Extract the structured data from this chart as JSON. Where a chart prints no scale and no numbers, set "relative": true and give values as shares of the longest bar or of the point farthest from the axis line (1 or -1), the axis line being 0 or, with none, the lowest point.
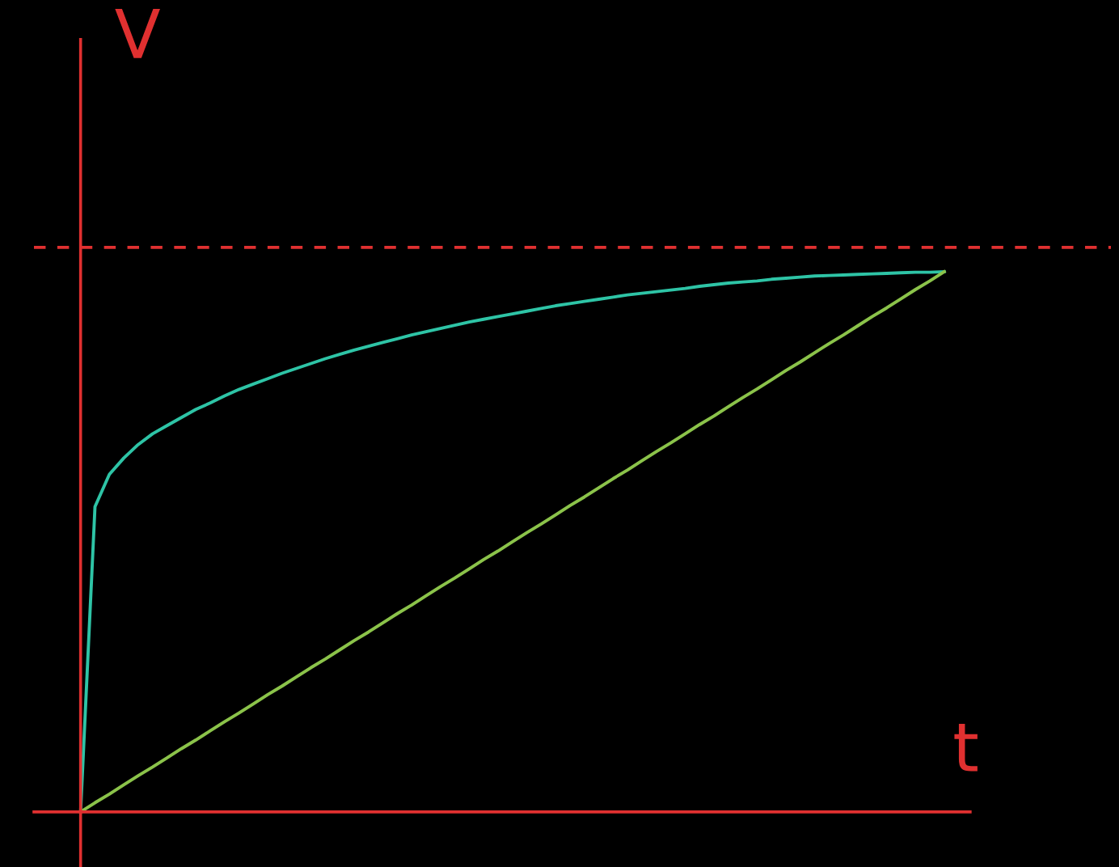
{
  "chart_data": {
    "type": "line",
    "relative": true,
    "xlabel": "t",
    "ylabel": "V",
    "categories": [
      null,
      null,
      null,
      null,
      null,
      null,
      null,
      null,
      null,
      null,
      null,
      null,
      null,
      null,
      null,
      null,
      null,
      null,
      null,
      null,
      null,
      null,
      null,
      null,
      null,
      null,
      null,
      null,
      null,
      null,
      null,
      null,
      null,
      null,
      null,
      null,
      null,
      null,
      null,
      null,
      null,
      null,
      null,
      null,
      null,
      null,
      null,
      null,
      null,
      null,
      null,
      null,
      null,
      null,
      null,
      null,
      null,
      null,
      null,
      null,
      null
    ],
    "series": [
      {
        "color": "#2ec4a6",
        "values": [
          0,
          0.565,
          0.625,
          0.655,
          0.68,
          0.7,
          0.715,
          0.73,
          0.745,
          0.757,
          0.77,
          0.782,
          0.792,
          0.802,
          0.812,
          0.821,
          0.83,
          0.839,
          0.847,
          0.855,
          0.862,
          0.869,
          0.876,
          0.883,
          0.889,
          0.895,
          0.901,
          0.907,
          0.912,
          0.917,
          0.922,
          0.927,
          0.932,
          0.937,
          0.941,
          0.945,
          0.949,
          0.953,
          0.957,
          0.96,
          0.963,
          0.966,
          0.969,
          0.973,
          0.976,
          0.979,
          0.981,
          0.983,
          0.986,
          0.988,
          0.99,
          0.992,
          0.993,
          0.994,
          0.995,
          0.996,
          0.997,
          0.998,
          0.999,
          0.999,
          1
        ]
      },
      {
        "color": "#8bc34a",
        "values": [
          0,
          0.017,
          0.033,
          0.05,
          0.067,
          0.083,
          0.1,
          0.117,
          0.133,
          0.15,
          0.167,
          0.183,
          0.2,
          0.217,
          0.233,
          0.25,
          0.267,
          0.283,
          0.3,
          0.317,
          0.333,
          0.35,
          0.367,
          0.383,
          0.4,
          0.417,
          0.433,
          0.45,
          0.467,
          0.483,
          0.5,
          0.517,
          0.533,
          0.55,
          0.567,
          0.583,
          0.6,
          0.617,
          0.633,
          0.65,
          0.667,
          0.683,
          0.7,
          0.717,
          0.733,
          0.75,
          0.767,
          0.783,
          0.8,
          0.817,
          0.833,
          0.85,
          0.867,
          0.883,
          0.9,
          0.917,
          0.933,
          0.95,
          0.967,
          0.983,
          1
        ]
      }
    ],
    "ref_lines": [
      {
        "axis": "y",
        "value": 1.045,
        "color": "#e03030",
        "line_style": "dashed"
      }
    ]
  }
}
